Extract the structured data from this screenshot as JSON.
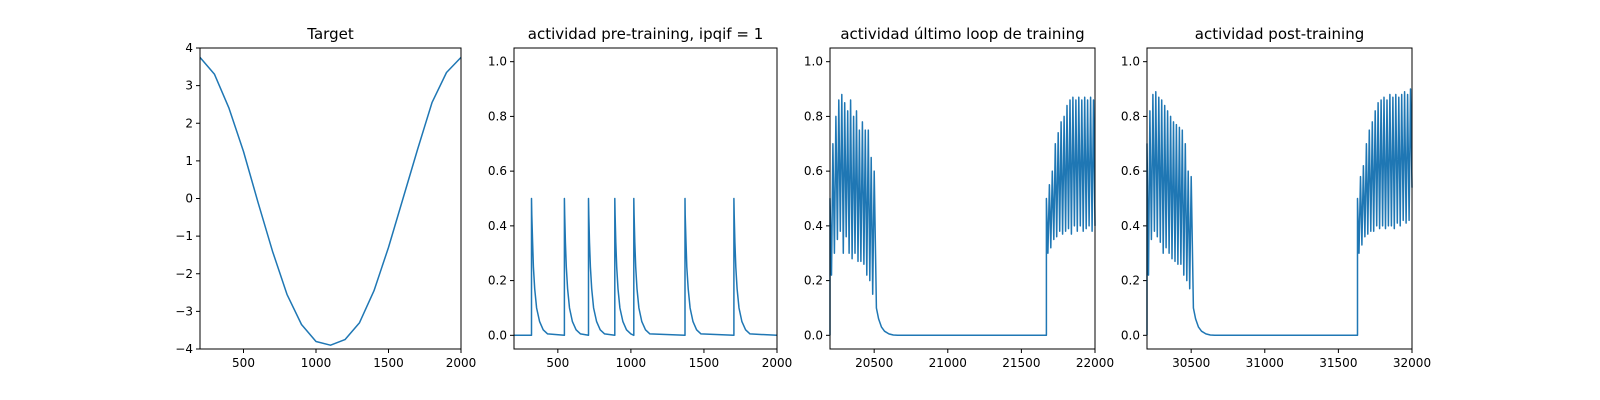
{
  "colors": {
    "line": "#1f77b4",
    "axes": "#000000",
    "background": "#ffffff"
  },
  "chart_data": [
    {
      "type": "line",
      "title": "Target",
      "xlabel": "",
      "ylabel": "",
      "xlim": [
        200,
        2000
      ],
      "ylim": [
        -4,
        4
      ],
      "xticks": [
        500,
        1000,
        1500,
        2000
      ],
      "xtick_labels": [
        "500",
        "1000",
        "1500",
        "2000"
      ],
      "yticks": [
        -4,
        -3,
        -2,
        -1,
        0,
        1,
        2,
        3,
        4
      ],
      "ytick_labels": [
        "−4",
        "−3",
        "−2",
        "−1",
        "0",
        "1",
        "2",
        "3",
        "4"
      ],
      "grid": false,
      "series": [
        {
          "x": [
            200,
            300,
            400,
            500,
            600,
            700,
            800,
            900,
            1000,
            1100,
            1200,
            1300,
            1400,
            1500,
            1600,
            1700,
            1800,
            1900,
            2000
          ],
          "y": [
            3.75,
            3.3,
            2.4,
            1.25,
            -0.1,
            -1.4,
            -2.55,
            -3.35,
            -3.8,
            -3.9,
            -3.75,
            -3.3,
            -2.45,
            -1.3,
            0.0,
            1.3,
            2.55,
            3.35,
            3.75
          ]
        }
      ]
    },
    {
      "type": "line",
      "title": "actividad pre-training, ipqif = 1",
      "xlabel": "",
      "ylabel": "",
      "xlim": [
        200,
        2000
      ],
      "ylim": [
        -0.05,
        1.05
      ],
      "xticks": [
        500,
        1000,
        1500,
        2000
      ],
      "xtick_labels": [
        "500",
        "1000",
        "1500",
        "2000"
      ],
      "yticks": [
        0.0,
        0.2,
        0.4,
        0.6,
        0.8,
        1.0
      ],
      "ytick_labels": [
        "0.0",
        "0.2",
        "0.4",
        "0.6",
        "0.8",
        "1.0"
      ],
      "grid": false,
      "series": [
        {
          "x": [
            200,
            320,
            320,
            322,
            327,
            333,
            342,
            355,
            375,
            400,
            430,
            545,
            545,
            547,
            552,
            558,
            567,
            580,
            600,
            625,
            655,
            710,
            710,
            712,
            717,
            723,
            732,
            745,
            765,
            790,
            820,
            890,
            890,
            892,
            897,
            903,
            912,
            925,
            945,
            970,
            1000,
            1020,
            1020,
            1022,
            1027,
            1033,
            1042,
            1055,
            1075,
            1100,
            1130,
            1370,
            1370,
            1372,
            1377,
            1383,
            1392,
            1405,
            1425,
            1450,
            1480,
            1705,
            1705,
            1707,
            1712,
            1718,
            1727,
            1740,
            1760,
            1785,
            1815,
            2000
          ],
          "y": [
            0,
            0,
            0.5,
            0.44,
            0.34,
            0.25,
            0.17,
            0.1,
            0.05,
            0.02,
            0.005,
            0,
            0.5,
            0.44,
            0.34,
            0.25,
            0.17,
            0.1,
            0.05,
            0.02,
            0.005,
            0,
            0.5,
            0.44,
            0.34,
            0.25,
            0.17,
            0.1,
            0.05,
            0.02,
            0.005,
            0,
            0.5,
            0.44,
            0.34,
            0.25,
            0.17,
            0.1,
            0.05,
            0.02,
            0.005,
            0,
            0.5,
            0.44,
            0.34,
            0.25,
            0.17,
            0.1,
            0.05,
            0.02,
            0.005,
            0,
            0.5,
            0.44,
            0.34,
            0.25,
            0.17,
            0.1,
            0.05,
            0.02,
            0.005,
            0,
            0.5,
            0.44,
            0.34,
            0.25,
            0.17,
            0.1,
            0.05,
            0.02,
            0.005,
            0
          ]
        }
      ]
    },
    {
      "type": "line",
      "title": "actividad último loop de training",
      "xlabel": "",
      "ylabel": "",
      "xlim": [
        20200,
        22000
      ],
      "ylim": [
        -0.05,
        1.05
      ],
      "xticks": [
        20500,
        21000,
        21500,
        22000
      ],
      "xtick_labels": [
        "20500",
        "21000",
        "21500",
        "22000"
      ],
      "yticks": [
        0.0,
        0.2,
        0.4,
        0.6,
        0.8,
        1.0
      ],
      "ytick_labels": [
        "0.0",
        "0.2",
        "0.4",
        "0.6",
        "0.8",
        "1.0"
      ],
      "grid": false,
      "series": [
        {
          "x": [
            20200,
            20200,
            20210,
            20220,
            20230,
            20240,
            20250,
            20260,
            20270,
            20280,
            20290,
            20300,
            20310,
            20320,
            20330,
            20340,
            20350,
            20360,
            20370,
            20380,
            20390,
            20400,
            20410,
            20420,
            20430,
            20440,
            20450,
            20460,
            20470,
            20480,
            20490,
            20500,
            20515,
            20530,
            20550,
            20570,
            20600,
            20630,
            20660,
            21670,
            21670,
            21680,
            21690,
            21700,
            21710,
            21720,
            21730,
            21740,
            21750,
            21760,
            21770,
            21780,
            21790,
            21800,
            21810,
            21820,
            21830,
            21840,
            21850,
            21860,
            21870,
            21880,
            21890,
            21900,
            21910,
            21920,
            21930,
            21940,
            21950,
            21960,
            21970,
            21980,
            21990,
            22000
          ],
          "y": [
            0,
            0.5,
            0.22,
            0.7,
            0.3,
            0.8,
            0.35,
            0.86,
            0.38,
            0.88,
            0.3,
            0.85,
            0.36,
            0.82,
            0.3,
            0.86,
            0.28,
            0.8,
            0.3,
            0.82,
            0.27,
            0.75,
            0.27,
            0.78,
            0.26,
            0.75,
            0.22,
            0.75,
            0.2,
            0.65,
            0.15,
            0.6,
            0.1,
            0.06,
            0.03,
            0.015,
            0.005,
            0.001,
            0,
            0,
            0.5,
            0.3,
            0.55,
            0.32,
            0.6,
            0.35,
            0.7,
            0.36,
            0.74,
            0.38,
            0.78,
            0.37,
            0.8,
            0.38,
            0.84,
            0.39,
            0.86,
            0.37,
            0.87,
            0.4,
            0.86,
            0.38,
            0.87,
            0.4,
            0.86,
            0.38,
            0.87,
            0.39,
            0.86,
            0.4,
            0.87,
            0.38,
            0.86,
            0.4
          ]
        }
      ]
    },
    {
      "type": "line",
      "title": "actividad post-training",
      "xlabel": "",
      "ylabel": "",
      "xlim": [
        30200,
        32000
      ],
      "ylim": [
        -0.05,
        1.05
      ],
      "xticks": [
        30500,
        31000,
        31500,
        32000
      ],
      "xtick_labels": [
        "30500",
        "31000",
        "31500",
        "32000"
      ],
      "yticks": [
        0.0,
        0.2,
        0.4,
        0.6,
        0.8,
        1.0
      ],
      "ytick_labels": [
        "0.0",
        "0.2",
        "0.4",
        "0.6",
        "0.8",
        "1.0"
      ],
      "grid": false,
      "series": [
        {
          "x": [
            30200,
            30200,
            30210,
            30220,
            30230,
            30240,
            30250,
            30260,
            30270,
            30280,
            30290,
            30300,
            30310,
            30320,
            30330,
            30340,
            30350,
            30360,
            30370,
            30380,
            30390,
            30400,
            30410,
            30420,
            30430,
            30440,
            30450,
            30460,
            30470,
            30480,
            30490,
            30500,
            30515,
            30530,
            30550,
            30570,
            30600,
            30630,
            30660,
            31630,
            31630,
            31640,
            31650,
            31660,
            31670,
            31680,
            31690,
            31700,
            31710,
            31720,
            31730,
            31740,
            31750,
            31760,
            31770,
            31780,
            31790,
            31800,
            31810,
            31820,
            31830,
            31840,
            31850,
            31860,
            31870,
            31880,
            31890,
            31900,
            31910,
            31920,
            31930,
            31940,
            31950,
            31960,
            31970,
            31980,
            31990,
            32000
          ],
          "y": [
            0,
            0.7,
            0.22,
            0.82,
            0.35,
            0.88,
            0.38,
            0.89,
            0.36,
            0.87,
            0.34,
            0.86,
            0.3,
            0.84,
            0.32,
            0.82,
            0.3,
            0.8,
            0.28,
            0.78,
            0.27,
            0.77,
            0.26,
            0.76,
            0.26,
            0.75,
            0.22,
            0.7,
            0.2,
            0.6,
            0.17,
            0.58,
            0.1,
            0.06,
            0.03,
            0.015,
            0.005,
            0.001,
            0,
            0,
            0.5,
            0.3,
            0.58,
            0.33,
            0.62,
            0.36,
            0.7,
            0.37,
            0.75,
            0.38,
            0.78,
            0.38,
            0.82,
            0.4,
            0.85,
            0.39,
            0.86,
            0.4,
            0.87,
            0.39,
            0.86,
            0.4,
            0.88,
            0.4,
            0.87,
            0.39,
            0.88,
            0.41,
            0.87,
            0.4,
            0.88,
            0.42,
            0.89,
            0.41,
            0.88,
            0.42,
            0.9,
            0.54
          ]
        }
      ]
    }
  ]
}
